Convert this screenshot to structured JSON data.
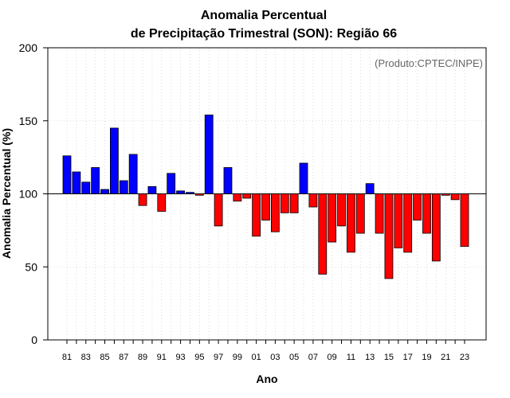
{
  "chart_data": {
    "type": "bar",
    "title_line1": "Anomalia Percentual",
    "title_line2": "de Precipitação Trimestral (SON): Região 66",
    "credit": "(Produto:CPTEC/INPE)",
    "xlabel": "Ano",
    "ylabel": "Anomalia Percentual (%)",
    "ylim": [
      0,
      200
    ],
    "yticks": [
      "0",
      "50",
      "100",
      "150",
      "200"
    ],
    "baseline": 100,
    "colors": {
      "above": "#0000ff",
      "below": "#ff0000",
      "baseline": "#000000",
      "grid": "#d3d3d3"
    },
    "categories": [
      "81",
      "82",
      "83",
      "84",
      "85",
      "86",
      "87",
      "88",
      "89",
      "90",
      "91",
      "92",
      "93",
      "94",
      "95",
      "96",
      "97",
      "98",
      "99",
      "00",
      "01",
      "02",
      "03",
      "04",
      "05",
      "06",
      "07",
      "08",
      "09",
      "10",
      "11",
      "12",
      "13",
      "14",
      "15",
      "16",
      "17",
      "18",
      "19",
      "20",
      "21",
      "22",
      "23"
    ],
    "x_tick_labels": [
      "81",
      "83",
      "85",
      "87",
      "89",
      "91",
      "93",
      "95",
      "97",
      "99",
      "01",
      "03",
      "05",
      "07",
      "09",
      "11",
      "13",
      "15",
      "17",
      "19",
      "21",
      "23"
    ],
    "values": [
      126,
      115,
      108,
      118,
      103,
      145,
      109,
      127,
      92,
      105,
      88,
      114,
      102,
      101,
      99,
      154,
      78,
      118,
      95,
      97,
      71,
      82,
      74,
      87,
      87,
      121,
      91,
      45,
      67,
      78,
      60,
      73,
      107,
      73,
      42,
      63,
      60,
      82,
      73,
      54,
      99,
      96,
      64
    ]
  }
}
